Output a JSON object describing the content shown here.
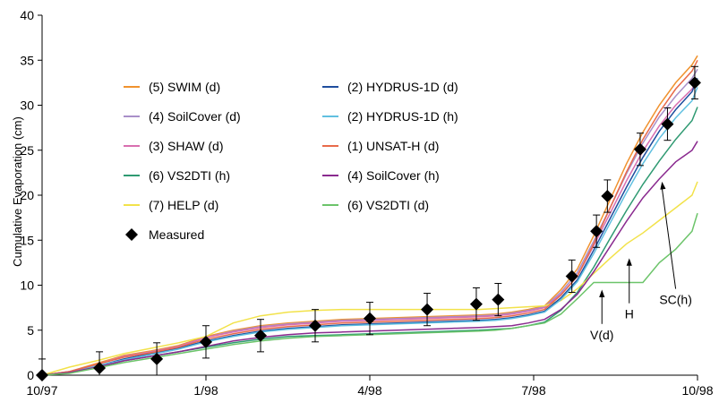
{
  "chart_data": {
    "type": "line",
    "title": "",
    "ylabel": "Cumulative Evaporation (cm)",
    "xlabel": "",
    "xlim": [
      0,
      12
    ],
    "ylim": [
      0,
      40
    ],
    "x_ticks": [
      {
        "v": 0,
        "label": "10/97"
      },
      {
        "v": 3,
        "label": "1/98"
      },
      {
        "v": 6,
        "label": "4/98"
      },
      {
        "v": 9,
        "label": "7/98"
      },
      {
        "v": 12,
        "label": "10/98"
      }
    ],
    "y_ticks": [
      {
        "v": 0,
        "label": "0"
      },
      {
        "v": 5,
        "label": "5"
      },
      {
        "v": 10,
        "label": "10"
      },
      {
        "v": 15,
        "label": "15"
      },
      {
        "v": 20,
        "label": "20"
      },
      {
        "v": 25,
        "label": "25"
      },
      {
        "v": 30,
        "label": "30"
      },
      {
        "v": 35,
        "label": "35"
      },
      {
        "v": 40,
        "label": "40"
      }
    ],
    "grid": false,
    "legend_position": "upper-left",
    "series": [
      {
        "name": "(5) SWIM (d)",
        "color": "#f0922e",
        "x": [
          0,
          0.5,
          1,
          1.5,
          2,
          2.5,
          3,
          3.5,
          4,
          4.5,
          5,
          5.5,
          6,
          6.5,
          7,
          7.5,
          8,
          8.3,
          8.6,
          8.9,
          9.2,
          9.5,
          9.8,
          10.1,
          10.4,
          10.7,
          11,
          11.3,
          11.6,
          11.9,
          12
        ],
        "y": [
          0,
          0.4,
          1.3,
          2.2,
          2.7,
          3.3,
          4.3,
          5.0,
          5.5,
          5.8,
          6.0,
          6.2,
          6.3,
          6.4,
          6.5,
          6.6,
          6.7,
          6.8,
          7.0,
          7.3,
          7.7,
          9.5,
          11.8,
          15.5,
          19.5,
          23.5,
          27.0,
          30.0,
          32.5,
          34.5,
          35.5
        ]
      },
      {
        "name": "(4) SoilCover (d)",
        "color": "#a98fc9",
        "x": [
          0,
          0.5,
          1,
          1.5,
          2,
          2.5,
          3,
          3.5,
          4,
          4.5,
          5,
          5.5,
          6,
          6.5,
          7,
          7.5,
          8,
          8.3,
          8.6,
          8.9,
          9.2,
          9.5,
          9.8,
          10.1,
          10.4,
          10.7,
          11,
          11.3,
          11.6,
          11.9,
          12
        ],
        "y": [
          0,
          0.4,
          1.2,
          2.1,
          2.6,
          3.2,
          4.2,
          4.9,
          5.4,
          5.7,
          5.9,
          6.1,
          6.2,
          6.3,
          6.4,
          6.5,
          6.6,
          6.7,
          6.9,
          7.2,
          7.6,
          9.2,
          11.4,
          14.9,
          18.6,
          22.4,
          25.8,
          28.7,
          31.0,
          33.0,
          34.0
        ]
      },
      {
        "name": "(3) SHAW (d)",
        "color": "#d86fb0",
        "x": [
          0,
          0.5,
          1,
          1.5,
          2,
          2.5,
          3,
          3.5,
          4,
          4.5,
          5,
          5.5,
          6,
          6.5,
          7,
          7.5,
          8,
          8.3,
          8.6,
          8.9,
          9.2,
          9.5,
          9.8,
          10.1,
          10.4,
          10.7,
          11,
          11.3,
          11.6,
          11.9,
          12
        ],
        "y": [
          0,
          0.4,
          1.2,
          2.1,
          2.6,
          3.2,
          4.2,
          4.8,
          5.3,
          5.6,
          5.8,
          6.0,
          6.1,
          6.2,
          6.3,
          6.4,
          6.5,
          6.6,
          6.8,
          7.1,
          7.5,
          9.0,
          11.0,
          14.4,
          18.0,
          21.6,
          24.9,
          27.7,
          30.0,
          31.8,
          32.8
        ]
      },
      {
        "name": "(6) VS2DTI (h)",
        "color": "#2f9a72",
        "x": [
          0,
          0.5,
          1,
          1.5,
          2,
          2.5,
          3,
          3.5,
          4,
          4.5,
          5,
          5.5,
          6,
          6.5,
          7,
          7.5,
          8,
          8.3,
          8.6,
          8.9,
          9.2,
          9.5,
          9.8,
          10.1,
          10.4,
          10.7,
          11,
          11.3,
          11.6,
          11.9,
          12
        ],
        "y": [
          0,
          0.3,
          0.9,
          1.6,
          2.1,
          2.6,
          3.1,
          3.6,
          4.0,
          4.3,
          4.4,
          4.5,
          4.6,
          4.7,
          4.8,
          4.9,
          5.0,
          5.1,
          5.2,
          5.5,
          5.9,
          7.2,
          9.2,
          12.0,
          15.2,
          18.3,
          21.2,
          23.8,
          26.2,
          28.3,
          29.8
        ]
      },
      {
        "name": "(7) HELP (d)",
        "color": "#f2e24a",
        "x": [
          0,
          0.5,
          1,
          1.5,
          2,
          2.5,
          3,
          3.5,
          4,
          4.5,
          5,
          5.5,
          6,
          6.5,
          7,
          7.5,
          8,
          8.3,
          8.6,
          8.9,
          9.2,
          9.5,
          9.8,
          10.1,
          10.4,
          10.7,
          11,
          11.3,
          11.6,
          11.9,
          12
        ],
        "y": [
          0,
          0.9,
          1.6,
          2.4,
          3.0,
          3.6,
          4.3,
          5.8,
          6.6,
          7.0,
          7.2,
          7.3,
          7.3,
          7.3,
          7.3,
          7.3,
          7.3,
          7.4,
          7.5,
          7.6,
          7.7,
          8.3,
          9.6,
          11.3,
          13.0,
          14.6,
          15.8,
          17.2,
          18.6,
          20.0,
          21.5
        ]
      },
      {
        "name": "(2) HYDRUS-1D (d)",
        "color": "#1f4e9e",
        "x": [
          0,
          0.5,
          1,
          1.5,
          2,
          2.5,
          3,
          3.5,
          4,
          4.5,
          5,
          5.5,
          6,
          6.5,
          7,
          7.5,
          8,
          8.3,
          8.6,
          8.9,
          9.2,
          9.5,
          9.8,
          10.1,
          10.4,
          10.7,
          11,
          11.3,
          11.6,
          11.9,
          12
        ],
        "y": [
          0,
          0.3,
          1.0,
          1.8,
          2.4,
          3.0,
          3.8,
          4.4,
          4.9,
          5.2,
          5.4,
          5.6,
          5.7,
          5.8,
          5.9,
          6.0,
          6.1,
          6.2,
          6.4,
          6.7,
          7.1,
          8.6,
          10.6,
          13.9,
          17.4,
          20.9,
          24.2,
          27.1,
          29.5,
          31.5,
          33.0
        ]
      },
      {
        "name": "(2) HYDRUS-1D (h)",
        "color": "#61c0e0",
        "x": [
          0,
          0.5,
          1,
          1.5,
          2,
          2.5,
          3,
          3.5,
          4,
          4.5,
          5,
          5.5,
          6,
          6.5,
          7,
          7.5,
          8,
          8.3,
          8.6,
          8.9,
          9.2,
          9.5,
          9.8,
          10.1,
          10.4,
          10.7,
          11,
          11.3,
          11.6,
          11.9,
          12
        ],
        "y": [
          0,
          0.3,
          1.0,
          1.7,
          2.3,
          2.9,
          3.7,
          4.3,
          4.8,
          5.1,
          5.3,
          5.5,
          5.6,
          5.7,
          5.8,
          5.9,
          6.0,
          6.1,
          6.3,
          6.6,
          7.0,
          8.4,
          10.4,
          13.5,
          16.9,
          20.3,
          23.5,
          26.3,
          28.6,
          30.5,
          32.0
        ]
      },
      {
        "name": "(1) UNSAT-H (d)",
        "color": "#e86a4a",
        "x": [
          0,
          0.5,
          1,
          1.5,
          2,
          2.5,
          3,
          3.5,
          4,
          4.5,
          5,
          5.5,
          6,
          6.5,
          7,
          7.5,
          8,
          8.3,
          8.6,
          8.9,
          9.2,
          9.5,
          9.8,
          10.1,
          10.4,
          10.7,
          11,
          11.3,
          11.6,
          11.9,
          12
        ],
        "y": [
          0,
          0.4,
          1.2,
          2.0,
          2.5,
          3.1,
          4.0,
          4.6,
          5.1,
          5.4,
          5.6,
          5.8,
          5.9,
          6.0,
          6.1,
          6.2,
          6.3,
          6.4,
          6.6,
          6.9,
          7.3,
          8.9,
          11.0,
          14.6,
          18.6,
          22.6,
          26.2,
          29.2,
          31.8,
          33.8,
          35.0
        ]
      },
      {
        "name": "(4) SoilCover (h)",
        "color": "#8a2a8f",
        "x": [
          0,
          0.5,
          1,
          1.5,
          2,
          2.5,
          3,
          3.5,
          4,
          4.5,
          5,
          5.5,
          6,
          6.5,
          7,
          7.5,
          8,
          8.3,
          8.6,
          8.9,
          9.2,
          9.5,
          9.8,
          10.1,
          10.4,
          10.7,
          11,
          11.3,
          11.6,
          11.9,
          12
        ],
        "y": [
          0,
          0.3,
          0.9,
          1.6,
          2.1,
          2.6,
          3.2,
          3.8,
          4.2,
          4.5,
          4.7,
          4.8,
          4.9,
          5.0,
          5.1,
          5.2,
          5.3,
          5.4,
          5.5,
          5.8,
          6.2,
          7.3,
          9.0,
          11.5,
          14.3,
          17.1,
          19.7,
          21.8,
          23.7,
          25.0,
          26.0
        ]
      },
      {
        "name": "(6) VS2DTI (d)",
        "color": "#6cc46a",
        "x": [
          0,
          0.5,
          1,
          1.5,
          2,
          2.5,
          3,
          3.5,
          4,
          4.5,
          5,
          5.5,
          6,
          6.5,
          7,
          7.5,
          8,
          8.3,
          8.6,
          8.9,
          9.2,
          9.5,
          9.8,
          10.1,
          10.4,
          10.7,
          11,
          11.3,
          11.6,
          11.9,
          12
        ],
        "y": [
          0,
          0.2,
          0.8,
          1.4,
          1.9,
          2.4,
          2.9,
          3.4,
          3.8,
          4.1,
          4.3,
          4.4,
          4.5,
          4.6,
          4.7,
          4.8,
          4.9,
          5.0,
          5.2,
          5.5,
          5.8,
          6.8,
          8.5,
          10.3,
          10.3,
          10.3,
          10.3,
          12.5,
          14.0,
          16.0,
          18.0
        ]
      }
    ],
    "measured": {
      "name": "Measured",
      "points": [
        {
          "x": 0.0,
          "y": 0.0,
          "err": 1.8
        },
        {
          "x": 1.05,
          "y": 0.8,
          "err": 1.8
        },
        {
          "x": 2.1,
          "y": 1.8,
          "err": 1.8
        },
        {
          "x": 3.0,
          "y": 3.7,
          "err": 1.8
        },
        {
          "x": 4.0,
          "y": 4.4,
          "err": 1.8
        },
        {
          "x": 5.0,
          "y": 5.5,
          "err": 1.8
        },
        {
          "x": 6.0,
          "y": 6.3,
          "err": 1.8
        },
        {
          "x": 7.05,
          "y": 7.3,
          "err": 1.8
        },
        {
          "x": 7.95,
          "y": 7.9,
          "err": 1.8
        },
        {
          "x": 8.35,
          "y": 8.4,
          "err": 1.8
        },
        {
          "x": 9.7,
          "y": 11.0,
          "err": 1.8
        },
        {
          "x": 10.15,
          "y": 16.0,
          "err": 1.8
        },
        {
          "x": 10.35,
          "y": 19.9,
          "err": 1.8
        },
        {
          "x": 10.95,
          "y": 25.1,
          "err": 1.8
        },
        {
          "x": 11.45,
          "y": 27.9,
          "err": 1.8
        },
        {
          "x": 11.95,
          "y": 32.5,
          "err": 1.8
        }
      ]
    },
    "annotations": [
      {
        "text": "V(d)",
        "arrow_to": [
          10.25,
          9.5
        ],
        "label_at": [
          10.25,
          4.0
        ]
      },
      {
        "text": "H",
        "arrow_to": [
          10.75,
          13.0
        ],
        "label_at": [
          10.75,
          6.3
        ]
      },
      {
        "text": "SC(h)",
        "arrow_to": [
          11.35,
          21.5
        ],
        "label_at": [
          11.6,
          7.9
        ]
      }
    ]
  }
}
